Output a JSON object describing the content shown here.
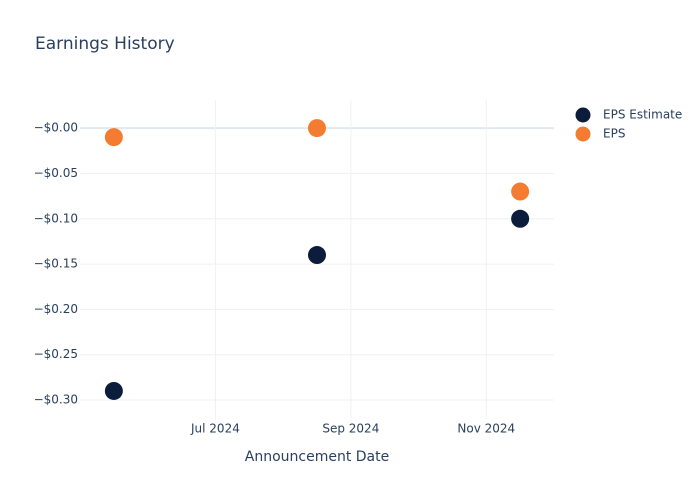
{
  "chart_data": {
    "type": "scatter",
    "title": "Earnings History",
    "x_label": "Announcement Date",
    "x": [
      "2024-05",
      "2024-08",
      "2024-11"
    ],
    "series": [
      {
        "name": "EPS Estimate",
        "color": "#0b1d3a",
        "values": [
          -0.29,
          -0.14,
          -0.1
        ]
      },
      {
        "name": "EPS",
        "color": "#f37c31",
        "values": [
          -0.01,
          0.0,
          -0.07
        ]
      }
    ],
    "xlim": [
      "2024-05",
      "2024-12"
    ],
    "xticks": [
      {
        "value": "2024-07",
        "label": "Jul 2024"
      },
      {
        "value": "2024-09",
        "label": "Sep 2024"
      },
      {
        "value": "2024-11",
        "label": "Nov 2024"
      }
    ],
    "ylim": [
      -0.322,
      0.031
    ],
    "yticks": [
      {
        "value": 0,
        "label": "−$0.00"
      },
      {
        "value": -0.05,
        "label": "−$0.05"
      },
      {
        "value": -0.1,
        "label": "−$0.10"
      },
      {
        "value": -0.15,
        "label": "−$0.15"
      },
      {
        "value": -0.2,
        "label": "−$0.20"
      },
      {
        "value": -0.25,
        "label": "−$0.25"
      },
      {
        "value": -0.3,
        "label": "−$0.30"
      }
    ],
    "grid": true,
    "legend": "top-right"
  }
}
